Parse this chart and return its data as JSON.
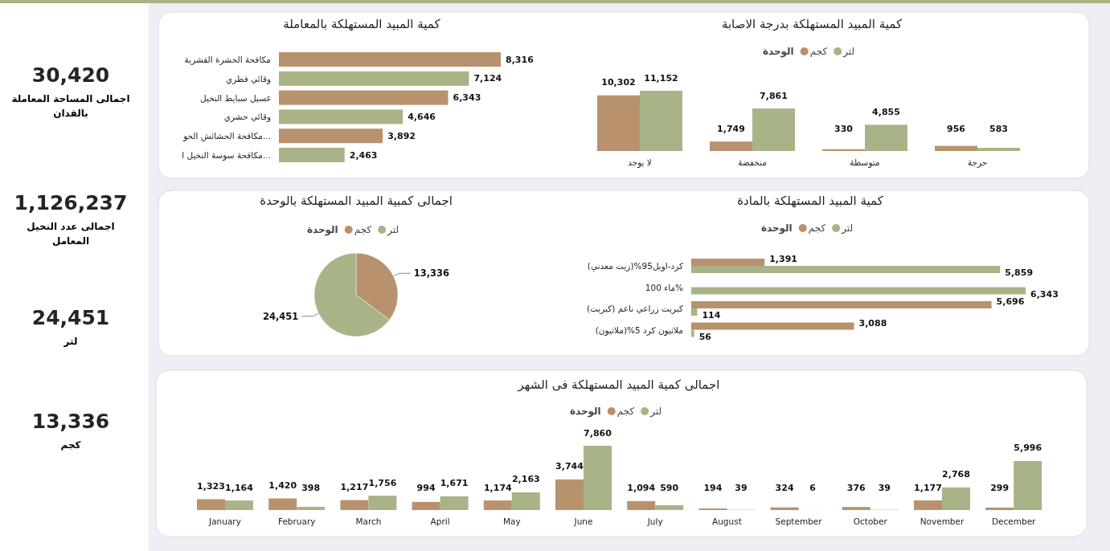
{
  "chart_data": [
    {
      "type": "other",
      "categories": [
        "اجمالى المساحة المعاملة بالفدان",
        "اجمالى عدد النخيل المعامل",
        "لتر",
        "كجم"
      ],
      "values": [
        30420,
        1126237,
        24451,
        13336
      ],
      "value_labels": [
        "30,420",
        "1,126,237",
        "24,451",
        "13,336"
      ]
    },
    {
      "type": "bar",
      "orientation": "horizontal",
      "title": "كمية المبيد المستهلكة بالمعاملة",
      "categories": [
        "مكافحة الحشرة القشرية",
        "وقائي فطري",
        "غسيل سبايط النخيل",
        "وقائي حشري",
        "مكافحة الحشائش الحو...",
        "مكافحة سوسة النخيل ا..."
      ],
      "values": [
        8316,
        7124,
        6343,
        4646,
        3892,
        2463
      ],
      "value_labels": [
        "8,316",
        "7,124",
        "6,343",
        "4,646",
        "3,892",
        "2,463"
      ],
      "colors": [
        "#b8926d",
        "#a8b387",
        "#b8926d",
        "#a8b387",
        "#b8926d",
        "#a8b387"
      ]
    },
    {
      "type": "bar",
      "title": "كمية المبيد المستهلكة بدرجة الاصابة",
      "legend_title": "الوحدة",
      "legend": "top",
      "categories": [
        "لا يوجد",
        "منخفضة",
        "متوسطة",
        "حرجة"
      ],
      "series": [
        {
          "name": "كجم",
          "color": "#b8926d",
          "values": [
            10302,
            1749,
            330,
            956
          ],
          "value_labels": [
            "10,302",
            "1,749",
            "330",
            "956"
          ]
        },
        {
          "name": "لتر",
          "color": "#a8b387",
          "values": [
            11152,
            7861,
            4855,
            583
          ],
          "value_labels": [
            "11,152",
            "7,861",
            "4,855",
            "583"
          ]
        }
      ]
    },
    {
      "type": "pie",
      "title": "اجمالى كمبية المبيد المستهلكة بالوحدة",
      "legend_title": "الوحدة",
      "legend": "top",
      "categories": [
        "كجم",
        "لتر"
      ],
      "values": [
        13336,
        24451
      ],
      "value_labels": [
        "13,336",
        "24,451"
      ],
      "colors": [
        "#b8926d",
        "#a8b387"
      ]
    },
    {
      "type": "bar",
      "orientation": "horizontal",
      "title": "كمية المبيد المستهلكة بالمادة",
      "legend_title": "الوحدة",
      "legend": "top",
      "categories": [
        "كرد-اويل95%(زيت معدني)",
        "ماء 100%",
        "كبريت زراعي ناعم (كبريت)",
        "ملاثيون كرد 5%(ملاثيون)"
      ],
      "series": [
        {
          "name": "كجم",
          "color": "#b8926d",
          "values": [
            1391,
            null,
            5696,
            3088
          ],
          "value_labels": [
            "1,391",
            null,
            "5,696",
            "3,088"
          ]
        },
        {
          "name": "لتر",
          "color": "#a8b387",
          "values": [
            5859,
            6343,
            114,
            56
          ],
          "value_labels": [
            "5,859",
            "6,343",
            "114",
            "56"
          ]
        }
      ]
    },
    {
      "type": "bar",
      "title": "اجمالى كمية المبيد المستهلكة فى الشهر",
      "legend_title": "الوحدة",
      "legend": "top",
      "categories": [
        "January",
        "February",
        "March",
        "April",
        "May",
        "June",
        "July",
        "August",
        "September",
        "October",
        "November",
        "December"
      ],
      "series": [
        {
          "name": "كجم",
          "color": "#b8926d",
          "values": [
            1323,
            1420,
            1217,
            994,
            1174,
            3744,
            1094,
            194,
            324,
            376,
            1177,
            299
          ],
          "value_labels": [
            "1,323",
            "1,420",
            "1,217",
            "994",
            "1,174",
            "3,744",
            "1,094",
            "194",
            "324",
            "376",
            "1,177",
            "299"
          ]
        },
        {
          "name": "لتر",
          "color": "#a8b387",
          "values": [
            1164,
            398,
            1756,
            1671,
            2163,
            7860,
            590,
            39,
            6,
            39,
            2768,
            5996
          ],
          "value_labels": [
            "1,164",
            "398",
            "1,756",
            "1,671",
            "2,163",
            "7,860",
            "590",
            "39",
            "6",
            "39",
            "2,768",
            "5,996"
          ]
        }
      ]
    }
  ]
}
